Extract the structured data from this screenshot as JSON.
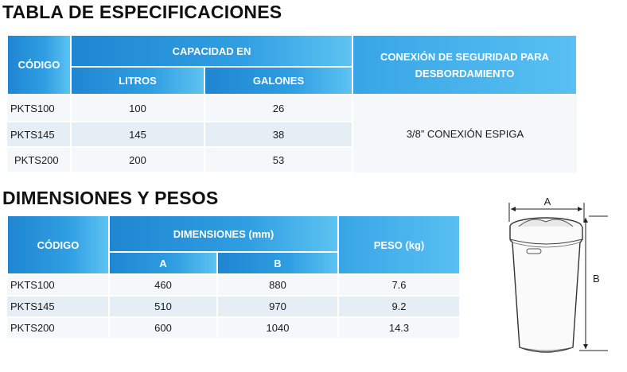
{
  "spec": {
    "title": "TABLA DE ESPECIFICACIONES",
    "headers": {
      "codigo": "CÓDIGO",
      "capacidad": "CAPACIDAD EN",
      "litros": "LITROS",
      "galones": "GALONES",
      "conexion_line1": "CONEXIÓN DE SEGURIDAD PARA",
      "conexion_line2": "DESBORDAMIENTO"
    },
    "rows": [
      {
        "codigo": "PKTS100",
        "litros": "100",
        "galones": "26"
      },
      {
        "codigo": "PKTS145",
        "litros": "145",
        "galones": "38"
      },
      {
        "codigo": "PKTS200",
        "litros": "200",
        "galones": "53"
      }
    ],
    "conexion_value": "3/8” CONEXIÓN ESPIGA"
  },
  "dims": {
    "title": "DIMENSIONES Y PESOS",
    "headers": {
      "codigo": "CÓDIGO",
      "dimensiones": "DIMENSIONES (mm)",
      "a": "A",
      "b": "B",
      "peso": "PESO (kg)"
    },
    "rows": [
      {
        "codigo": "PKTS100",
        "a": "460",
        "b": "880",
        "peso": "7.6"
      },
      {
        "codigo": "PKTS145",
        "a": "510",
        "b": "970",
        "peso": "9.2"
      },
      {
        "codigo": "PKTS200",
        "a": "600",
        "b": "1040",
        "peso": "14.3"
      }
    ]
  },
  "diagram": {
    "label_a": "A",
    "label_b": "B"
  }
}
